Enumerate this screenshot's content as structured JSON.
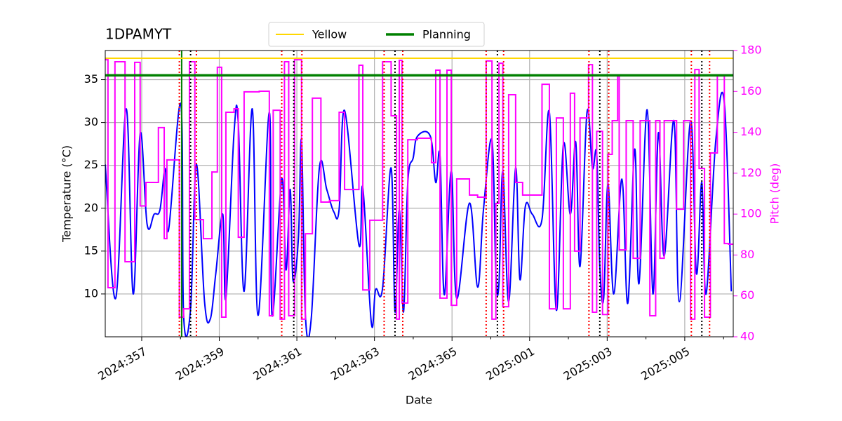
{
  "chart_data": {
    "type": "line",
    "title": "1DPAMYT",
    "xlabel": "Date",
    "ylabel": "Temperature (°C)",
    "y2label": "Pitch (deg)",
    "y2color": "#ff00ff",
    "xlim": [
      356.06,
      372.25
    ],
    "xticks": [
      {
        "value": 357,
        "label": "2024:357"
      },
      {
        "value": 359,
        "label": "2024:359"
      },
      {
        "value": 361,
        "label": "2024:361"
      },
      {
        "value": 363,
        "label": "2024:363"
      },
      {
        "value": 365,
        "label": "2024:365"
      },
      {
        "value": 367,
        "label": "2025:001"
      },
      {
        "value": 369,
        "label": "2025:003"
      },
      {
        "value": 371,
        "label": "2025:005"
      }
    ],
    "xminorticks": [
      358,
      360,
      362,
      364,
      366,
      368,
      370,
      372
    ],
    "ylim": [
      5,
      38.4
    ],
    "yticks": [
      10,
      15,
      20,
      25,
      30,
      35
    ],
    "y2lim": [
      40,
      180
    ],
    "y2ticks": [
      40,
      60,
      80,
      100,
      120,
      140,
      160,
      180
    ],
    "grid": true,
    "legend": "top-center",
    "series": [
      {
        "color": "#0000ff",
        "axis": "y",
        "step": false,
        "x": [
          356.06,
          356.33,
          356.6,
          356.78,
          356.96,
          357.14,
          357.32,
          357.47,
          357.61,
          357.69,
          358.01,
          358.08,
          358.26,
          358.41,
          358.62,
          358.77,
          358.91,
          359.09,
          359.17,
          359.38,
          359.49,
          359.64,
          359.85,
          360.0,
          360.29,
          360.36,
          360.61,
          360.72,
          360.83,
          360.9,
          361.04,
          361.12,
          361.22,
          361.37,
          361.58,
          361.77,
          361.95,
          362.09,
          362.23,
          362.6,
          362.7,
          362.92,
          363.03,
          363.21,
          363.43,
          363.53,
          363.64,
          363.75,
          363.86,
          364.0,
          364.11,
          364.44,
          364.58,
          364.69,
          364.8,
          364.98,
          365.12,
          365.45,
          365.66,
          365.81,
          366.03,
          366.13,
          366.21,
          366.31,
          366.46,
          366.64,
          366.75,
          366.89,
          367.07,
          367.32,
          367.51,
          367.69,
          367.87,
          368.05,
          368.19,
          368.3,
          368.48,
          368.62,
          368.73,
          368.81,
          368.91,
          369.02,
          369.17,
          369.38,
          369.53,
          369.71,
          369.82,
          370.03,
          370.18,
          370.32,
          370.47,
          370.72,
          370.86,
          371.15,
          371.3,
          371.44,
          371.55,
          371.8,
          372.02,
          372.2
        ],
        "values": [
          25.1,
          9.5,
          31.6,
          10,
          28.7,
          18.1,
          19.3,
          19.8,
          24.6,
          17.4,
          32.1,
          7.5,
          8.3,
          25.1,
          9.1,
          7.1,
          12.4,
          19.3,
          9.5,
          28.8,
          29.9,
          10.3,
          31.6,
          7.5,
          31.2,
          7.5,
          23.4,
          12.8,
          22.2,
          11.6,
          16.5,
          27.9,
          7.5,
          7.1,
          24.7,
          22.2,
          19.6,
          19.9,
          31.4,
          15.7,
          22.4,
          6.6,
          10.5,
          10.7,
          24.7,
          7.9,
          19.8,
          7.9,
          23.0,
          25.9,
          28.4,
          28.4,
          23.0,
          26.1,
          9.9,
          24.3,
          9.5,
          20.6,
          10.8,
          19.8,
          27.9,
          12.4,
          11.2,
          24.3,
          9.1,
          24.7,
          11.7,
          20.2,
          19.3,
          18.7,
          31.2,
          8.1,
          27.4,
          19.3,
          27.7,
          13.2,
          31.2,
          24.7,
          26.3,
          13.2,
          9.5,
          22.9,
          10.0,
          23.4,
          8.9,
          26.9,
          11.2,
          31.5,
          10.0,
          28.8,
          14.4,
          30.2,
          9.1,
          30.2,
          12.4,
          23.0,
          10.0,
          27.9,
          32.3,
          10.3
        ]
      },
      {
        "color": "#ff00ff",
        "axis": "y2",
        "step": true,
        "x": [
          356.06,
          356.13,
          356.31,
          356.57,
          356.82,
          356.96,
          357.11,
          357.43,
          357.58,
          357.65,
          357.97,
          358.08,
          358.23,
          358.37,
          358.59,
          358.81,
          358.95,
          359.06,
          359.17,
          359.38,
          359.49,
          359.64,
          360.03,
          360.29,
          360.39,
          360.57,
          360.68,
          360.79,
          360.94,
          361.12,
          361.22,
          361.4,
          361.62,
          361.84,
          362.09,
          362.23,
          362.6,
          362.7,
          362.88,
          363.21,
          363.43,
          363.57,
          363.64,
          363.71,
          363.86,
          364.11,
          364.47,
          364.58,
          364.69,
          364.87,
          364.98,
          365.12,
          365.45,
          365.66,
          365.88,
          366.03,
          366.13,
          366.21,
          366.31,
          366.46,
          366.64,
          366.82,
          367.32,
          367.51,
          367.69,
          367.87,
          368.05,
          368.16,
          368.3,
          368.52,
          368.62,
          368.73,
          368.88,
          369.02,
          369.13,
          369.27,
          369.31,
          369.49,
          369.67,
          369.85,
          370.1,
          370.25,
          370.36,
          370.47,
          370.79,
          370.97,
          371.15,
          371.26,
          371.37,
          371.51,
          371.66,
          371.84,
          372.02,
          372.13
        ],
        "values": [
          175.5,
          64,
          174.5,
          76.7,
          174.2,
          104,
          115.5,
          142.3,
          88,
          126.5,
          49.6,
          53.7,
          174.5,
          97.3,
          88,
          120.6,
          171.8,
          49.6,
          149.8,
          151.5,
          88.7,
          159.8,
          160.1,
          50.3,
          150.8,
          48.6,
          174.5,
          50.3,
          175.5,
          48.6,
          90.4,
          156.7,
          105.9,
          106.6,
          149.8,
          112,
          172.8,
          62.9,
          97,
          174.5,
          148.1,
          48.6,
          175.2,
          56.5,
          136.4,
          137.1,
          125.2,
          170.4,
          58.9,
          170.4,
          55.4,
          117.2,
          109.3,
          108.3,
          174.9,
          48.6,
          105.2,
          173.8,
          54.7,
          158.4,
          115.5,
          109.3,
          163.5,
          53.7,
          147,
          53.7,
          159.1,
          81.9,
          147,
          173.1,
          52,
          140.5,
          50.9,
          129.2,
          145.7,
          167.6,
          82.5,
          145.7,
          78.4,
          145.7,
          50.3,
          145.7,
          78.4,
          145.7,
          102.4,
          145.7,
          48.6,
          170.7,
          122.3,
          49.6,
          129.9,
          167.6,
          85.6,
          85.3
        ]
      }
    ],
    "hlines": [
      {
        "name": "Yellow",
        "value": 37.5,
        "color": "#ffd700"
      },
      {
        "name": "Planning",
        "value": 35.5,
        "color": "#008000"
      }
    ],
    "vlines": [
      {
        "color": "#ff0000",
        "dashed": true,
        "values": [
          357.97,
          358.41,
          360.61,
          361.13,
          363.25,
          363.73,
          365.88,
          366.33,
          368.53,
          369.04,
          371.17,
          371.64
        ]
      },
      {
        "color": "#000000",
        "dashed": true,
        "values": [
          358.26,
          360.92,
          363.53,
          366.17,
          368.81,
          371.44
        ]
      },
      {
        "color": "#008000",
        "dashed": false,
        "values": [
          358.03
        ]
      }
    ]
  }
}
